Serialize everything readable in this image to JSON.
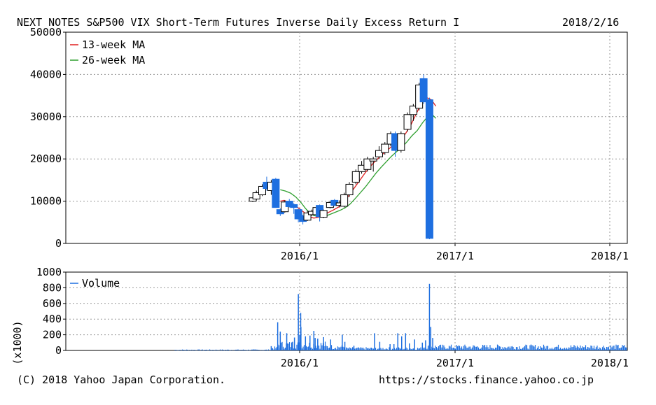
{
  "header": {
    "title": "NEXT NOTES S&P500 VIX Short-Term Futures Inverse Daily Excess Return I",
    "date": "2018/2/16"
  },
  "footer": {
    "copyright": "(C) 2018 Yahoo Japan Corporation.",
    "url": "https://stocks.finance.yahoo.co.jp"
  },
  "colors": {
    "bear": "#1e6fe0",
    "ma13": "#e02020",
    "ma26": "#30a030",
    "volume": "#1e6fe0",
    "grid": "#999999"
  },
  "chart_data": [
    {
      "type": "candlestick",
      "x_ticks": [
        "2016/1",
        "2017/1",
        "2018/1"
      ],
      "ylim": [
        0,
        50000
      ],
      "y_ticks": [
        0,
        10000,
        20000,
        30000,
        40000,
        50000
      ],
      "y_tick_labels": [
        "0",
        "10000",
        "20000",
        "30000",
        "40000",
        "50000"
      ],
      "legend": [
        "13-week MA",
        "26-week MA"
      ],
      "legend_position": "top-left",
      "grid": true,
      "candles": [
        {
          "t": 0.37,
          "o": 10000,
          "h": 11000,
          "l": 9800,
          "c": 10800
        },
        {
          "t": 0.65,
          "o": 10500,
          "h": 12500,
          "l": 10200,
          "c": 12000
        },
        {
          "t": 1.1,
          "o": 11500,
          "h": 14000,
          "l": 11200,
          "c": 13500
        },
        {
          "t": 1.45,
          "o": 14500,
          "h": 15800,
          "l": 12500,
          "c": 13000
        },
        {
          "t": 1.8,
          "o": 12500,
          "h": 15000,
          "l": 11500,
          "c": 14500
        },
        {
          "t": 2.15,
          "o": 15200,
          "h": 15500,
          "l": 8500,
          "c": 8500
        },
        {
          "t": 2.5,
          "o": 8000,
          "h": 8300,
          "l": 6500,
          "c": 7000
        },
        {
          "t": 2.85,
          "o": 7500,
          "h": 10200,
          "l": 7300,
          "c": 9800
        },
        {
          "t": 3.2,
          "o": 10000,
          "h": 10500,
          "l": 8500,
          "c": 8700
        },
        {
          "t": 3.55,
          "o": 9200,
          "h": 9500,
          "l": 7000,
          "c": 8500
        },
        {
          "t": 3.9,
          "o": 8000,
          "h": 8200,
          "l": 5000,
          "c": 5800
        },
        {
          "t": 4.25,
          "o": 6500,
          "h": 6800,
          "l": 4500,
          "c": 5200
        },
        {
          "t": 4.6,
          "o": 5500,
          "h": 7800,
          "l": 5300,
          "c": 7200
        },
        {
          "t": 4.95,
          "o": 6800,
          "h": 8000,
          "l": 6500,
          "c": 7600
        },
        {
          "t": 5.3,
          "o": 6800,
          "h": 9000,
          "l": 6500,
          "c": 8500
        },
        {
          "t": 5.55,
          "o": 9000,
          "h": 9200,
          "l": 5200,
          "c": 6300
        },
        {
          "t": 5.85,
          "o": 6200,
          "h": 8000,
          "l": 6000,
          "c": 7800
        },
        {
          "t": 6.35,
          "o": 8500,
          "h": 10000,
          "l": 8300,
          "c": 9700
        },
        {
          "t": 6.7,
          "o": 10200,
          "h": 10500,
          "l": 8800,
          "c": 9000
        },
        {
          "t": 7.1,
          "o": 9000,
          "h": 10200,
          "l": 8500,
          "c": 9600
        },
        {
          "t": 7.45,
          "o": 8800,
          "h": 12000,
          "l": 8500,
          "c": 11500
        },
        {
          "t": 7.85,
          "o": 11500,
          "h": 14500,
          "l": 11000,
          "c": 14000
        },
        {
          "t": 8.35,
          "o": 14500,
          "h": 17500,
          "l": 14000,
          "c": 17000
        },
        {
          "t": 8.8,
          "o": 17000,
          "h": 19500,
          "l": 16500,
          "c": 18500
        },
        {
          "t": 9.25,
          "o": 17500,
          "h": 20500,
          "l": 17000,
          "c": 20000
        },
        {
          "t": 9.7,
          "o": 19500,
          "h": 20500,
          "l": 17000,
          "c": 20000
        },
        {
          "t": 10.15,
          "o": 20500,
          "h": 23000,
          "l": 20000,
          "c": 22000
        },
        {
          "t": 10.6,
          "o": 21500,
          "h": 24000,
          "l": 21000,
          "c": 23500
        },
        {
          "t": 11.05,
          "o": 23500,
          "h": 26500,
          "l": 23000,
          "c": 26000
        },
        {
          "t": 11.4,
          "o": 26000,
          "h": 26500,
          "l": 20500,
          "c": 22000
        },
        {
          "t": 11.85,
          "o": 22000,
          "h": 26500,
          "l": 21500,
          "c": 26000
        },
        {
          "t": 12.35,
          "o": 27000,
          "h": 31000,
          "l": 26500,
          "c": 30500
        },
        {
          "t": 12.8,
          "o": 30500,
          "h": 33000,
          "l": 29000,
          "c": 32500
        },
        {
          "t": 13.25,
          "o": 32000,
          "h": 38000,
          "l": 31500,
          "c": 37500
        },
        {
          "t": 13.6,
          "o": 39000,
          "h": 40000,
          "l": 33000,
          "c": 33500
        },
        {
          "t": 14.05,
          "o": 34000,
          "h": 34500,
          "l": 1000,
          "c": 1200
        }
      ],
      "ma13": [
        [
          2.5,
          10000
        ],
        [
          2.8,
          10200
        ],
        [
          3.2,
          9700
        ],
        [
          3.6,
          9000
        ],
        [
          4.0,
          8200
        ],
        [
          4.4,
          7200
        ],
        [
          4.75,
          6300
        ],
        [
          5.1,
          6000
        ],
        [
          5.45,
          6200
        ],
        [
          5.8,
          6700
        ],
        [
          6.2,
          7300
        ],
        [
          6.6,
          7900
        ],
        [
          7.0,
          8600
        ],
        [
          7.4,
          9700
        ],
        [
          7.8,
          11300
        ],
        [
          8.2,
          13000
        ],
        [
          8.6,
          14700
        ],
        [
          9.0,
          16400
        ],
        [
          9.4,
          18000
        ],
        [
          9.8,
          19300
        ],
        [
          10.2,
          20500
        ],
        [
          10.6,
          21600
        ],
        [
          11.0,
          22600
        ],
        [
          11.4,
          23700
        ],
        [
          11.8,
          24600
        ],
        [
          12.2,
          26000
        ],
        [
          12.6,
          28000
        ],
        [
          13.0,
          30500
        ],
        [
          13.4,
          33000
        ],
        [
          13.7,
          34700
        ],
        [
          14.2,
          34000
        ],
        [
          14.55,
          32500
        ]
      ],
      "ma26": [
        [
          2.5,
          12700
        ],
        [
          2.9,
          12400
        ],
        [
          3.3,
          11900
        ],
        [
          3.7,
          11000
        ],
        [
          4.1,
          9700
        ],
        [
          4.45,
          8300
        ],
        [
          4.75,
          7300
        ],
        [
          5.1,
          6600
        ],
        [
          5.5,
          6300
        ],
        [
          5.9,
          6400
        ],
        [
          6.3,
          6800
        ],
        [
          6.7,
          7300
        ],
        [
          7.1,
          7800
        ],
        [
          7.5,
          8400
        ],
        [
          7.9,
          9300
        ],
        [
          8.3,
          10600
        ],
        [
          8.7,
          12000
        ],
        [
          9.1,
          13400
        ],
        [
          9.5,
          15000
        ],
        [
          9.9,
          16600
        ],
        [
          10.3,
          18000
        ],
        [
          10.7,
          19300
        ],
        [
          11.1,
          20600
        ],
        [
          11.5,
          21700
        ],
        [
          11.9,
          22700
        ],
        [
          12.3,
          24000
        ],
        [
          12.7,
          25500
        ],
        [
          13.1,
          26700
        ],
        [
          13.5,
          28500
        ],
        [
          13.9,
          30000
        ],
        [
          14.2,
          30700
        ],
        [
          14.55,
          29600
        ]
      ]
    },
    {
      "type": "bar",
      "title": "Volume",
      "ylabel": "(x1000)",
      "ylim": [
        0,
        1000
      ],
      "y_ticks": [
        0,
        200,
        400,
        600,
        800,
        1000
      ],
      "y_tick_labels": [
        "0",
        "200",
        "400",
        "600",
        "800",
        "1000"
      ],
      "x_ticks": [
        "2016/1",
        "2017/1",
        "2018/1"
      ],
      "legend": [
        "Volume"
      ],
      "legend_position": "top-left",
      "grid": true,
      "spikes": [
        [
          1.8,
          55
        ],
        [
          2.3,
          360
        ],
        [
          2.5,
          240
        ],
        [
          3.0,
          220
        ],
        [
          3.45,
          110
        ],
        [
          3.6,
          165
        ],
        [
          3.9,
          720
        ],
        [
          4.0,
          200
        ],
        [
          4.08,
          480
        ],
        [
          4.1,
          300
        ],
        [
          4.45,
          180
        ],
        [
          4.8,
          190
        ],
        [
          5.1,
          250
        ],
        [
          5.2,
          160
        ],
        [
          5.4,
          150
        ],
        [
          5.85,
          170
        ],
        [
          6.4,
          140
        ],
        [
          7.3,
          200
        ],
        [
          7.5,
          110
        ],
        [
          8.2,
          60
        ],
        [
          9.8,
          220
        ],
        [
          10.2,
          110
        ],
        [
          11.0,
          80
        ],
        [
          11.3,
          80
        ],
        [
          11.6,
          220
        ],
        [
          11.9,
          180
        ],
        [
          12.2,
          220
        ],
        [
          12.5,
          90
        ],
        [
          12.9,
          140
        ],
        [
          13.5,
          100
        ],
        [
          13.75,
          130
        ],
        [
          14.05,
          850
        ],
        [
          14.15,
          300
        ],
        [
          14.3,
          160
        ]
      ]
    }
  ]
}
